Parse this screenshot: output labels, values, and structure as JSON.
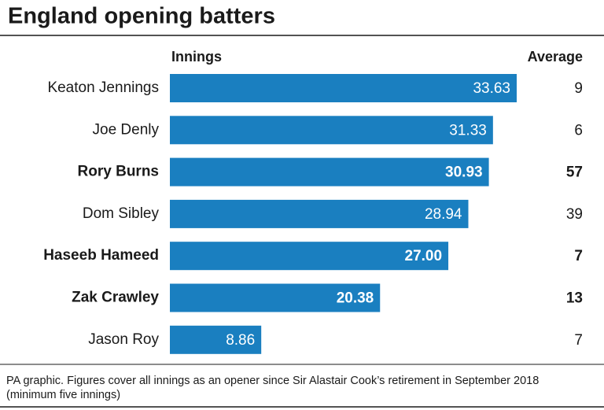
{
  "chart_data": {
    "type": "bar",
    "orientation": "horizontal",
    "title": "England opening batters",
    "bar_header": "Innings",
    "side_header": "Average",
    "categories": [
      "Keaton Jennings",
      "Joe Denly",
      "Rory Burns",
      "Dom Sibley",
      "Haseeb Hameed",
      "Zak Crawley",
      "Jason Roy"
    ],
    "values": [
      33.63,
      31.33,
      30.93,
      28.94,
      27,
      20.38,
      8.86
    ],
    "value_labels": [
      "33.63",
      "31.33",
      "30.93",
      "28.94",
      "27.00",
      "20.38",
      "8.86"
    ],
    "side_values": [
      9,
      6,
      57,
      39,
      7,
      13,
      7
    ],
    "bold": [
      false,
      false,
      true,
      false,
      true,
      true,
      false
    ],
    "color": "#1a7fc0",
    "footnote": [
      "PA graphic. Figures cover all innings as an opener since Sir Alastair Cook’s retirement in September 2018",
      "(minimum five innings)"
    ]
  }
}
